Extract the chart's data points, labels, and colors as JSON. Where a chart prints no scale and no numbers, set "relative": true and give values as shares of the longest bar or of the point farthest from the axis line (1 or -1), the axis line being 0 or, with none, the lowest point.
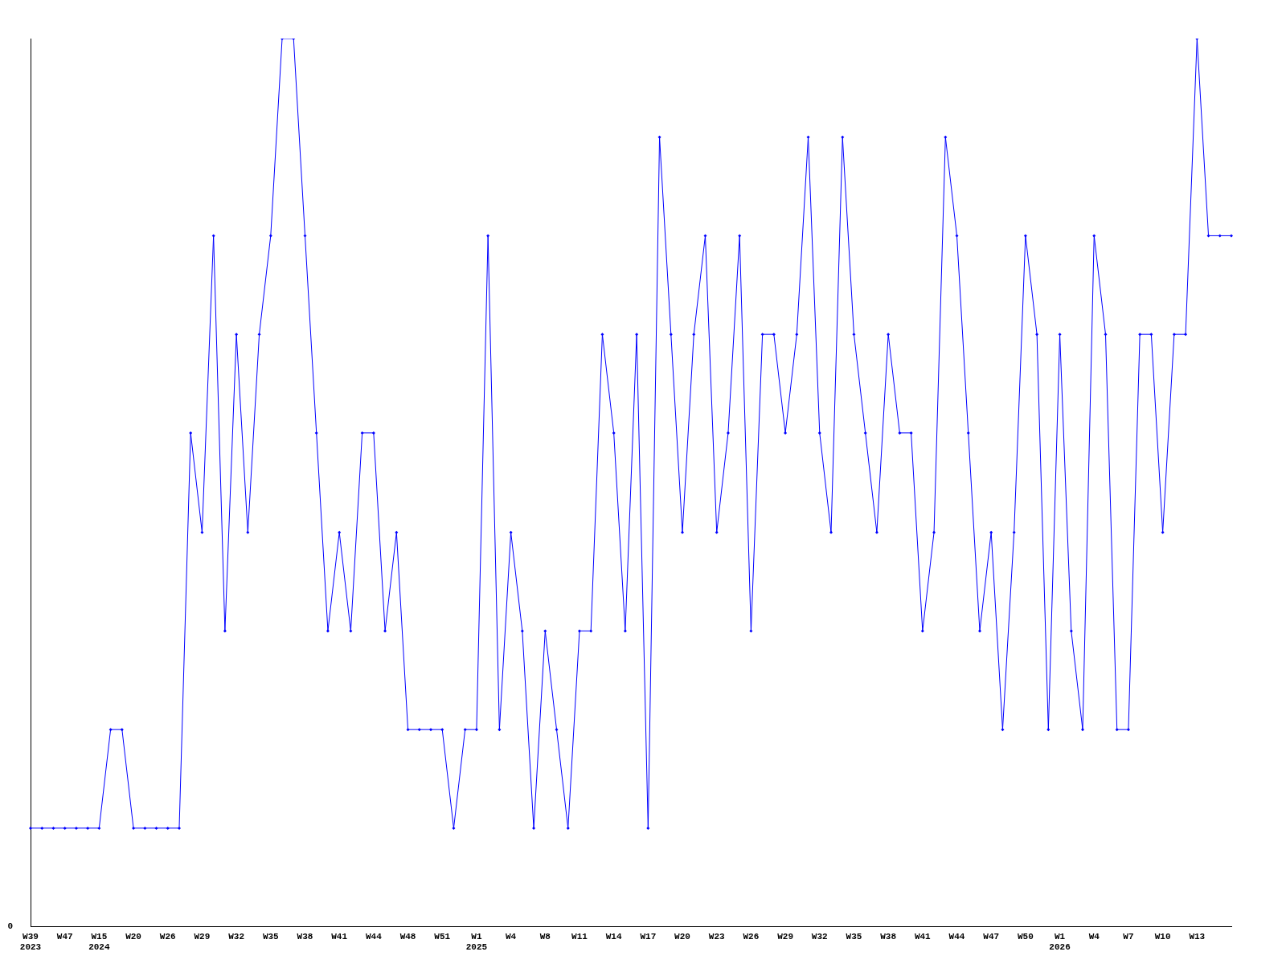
{
  "chart_data": {
    "type": "line",
    "relative": true,
    "grid": false,
    "legend": false,
    "marker": "diamond",
    "line_style": "solid",
    "categories": [
      "W39\n2023",
      null,
      null,
      "W47",
      null,
      null,
      "W15\n2024",
      null,
      null,
      "W20",
      null,
      null,
      "W26",
      null,
      null,
      "W29",
      null,
      null,
      "W32",
      null,
      null,
      "W35",
      null,
      null,
      "W38",
      null,
      null,
      "W41",
      null,
      null,
      "W44",
      null,
      null,
      "W48",
      null,
      null,
      "W51",
      null,
      null,
      "W1\n2025",
      null,
      null,
      "W4",
      null,
      null,
      "W8",
      null,
      null,
      "W11",
      null,
      null,
      "W14",
      null,
      null,
      "W17",
      null,
      null,
      "W20",
      null,
      null,
      "W23",
      null,
      null,
      "W26",
      null,
      null,
      "W29",
      null,
      null,
      "W32",
      null,
      null,
      "W35",
      null,
      null,
      "W38",
      null,
      null,
      "W41",
      null,
      null,
      "W44",
      null,
      null,
      "W47",
      null,
      null,
      "W50",
      null,
      null,
      "W1\n2026",
      null,
      null,
      "W4",
      null,
      null,
      "W7",
      null,
      null,
      "W10",
      null,
      null,
      "W13",
      null,
      null,
      null
    ],
    "series": [
      {
        "color": "#0000ff",
        "values": [
          0.111,
          0.111,
          0.111,
          0.111,
          0.111,
          0.111,
          0.111,
          0.222,
          0.222,
          0.111,
          0.111,
          0.111,
          0.111,
          0.111,
          0.556,
          0.444,
          0.778,
          0.333,
          0.667,
          0.444,
          0.667,
          0.778,
          1,
          1,
          0.778,
          0.556,
          0.333,
          0.444,
          0.333,
          0.556,
          0.556,
          0.333,
          0.444,
          0.222,
          0.222,
          0.222,
          0.222,
          0.111,
          0.222,
          0.222,
          0.778,
          0.222,
          0.444,
          0.333,
          0.111,
          0.333,
          0.222,
          0.111,
          0.333,
          0.333,
          0.667,
          0.556,
          0.333,
          0.667,
          0.111,
          0.889,
          0.667,
          0.444,
          0.667,
          0.778,
          0.444,
          0.556,
          0.778,
          0.333,
          0.667,
          0.667,
          0.556,
          0.667,
          0.889,
          0.556,
          0.444,
          0.889,
          0.667,
          0.556,
          0.444,
          0.667,
          0.556,
          0.556,
          0.333,
          0.444,
          0.889,
          0.778,
          0.556,
          0.333,
          0.444,
          0.222,
          0.444,
          0.778,
          0.667,
          0.222,
          0.667,
          0.333,
          0.222,
          0.778,
          0.667,
          0.222,
          0.222,
          0.667,
          0.667,
          0.444,
          0.667,
          0.667,
          1,
          0.778,
          0.778,
          0.778
        ]
      }
    ],
    "annotations": [
      "0"
    ]
  }
}
